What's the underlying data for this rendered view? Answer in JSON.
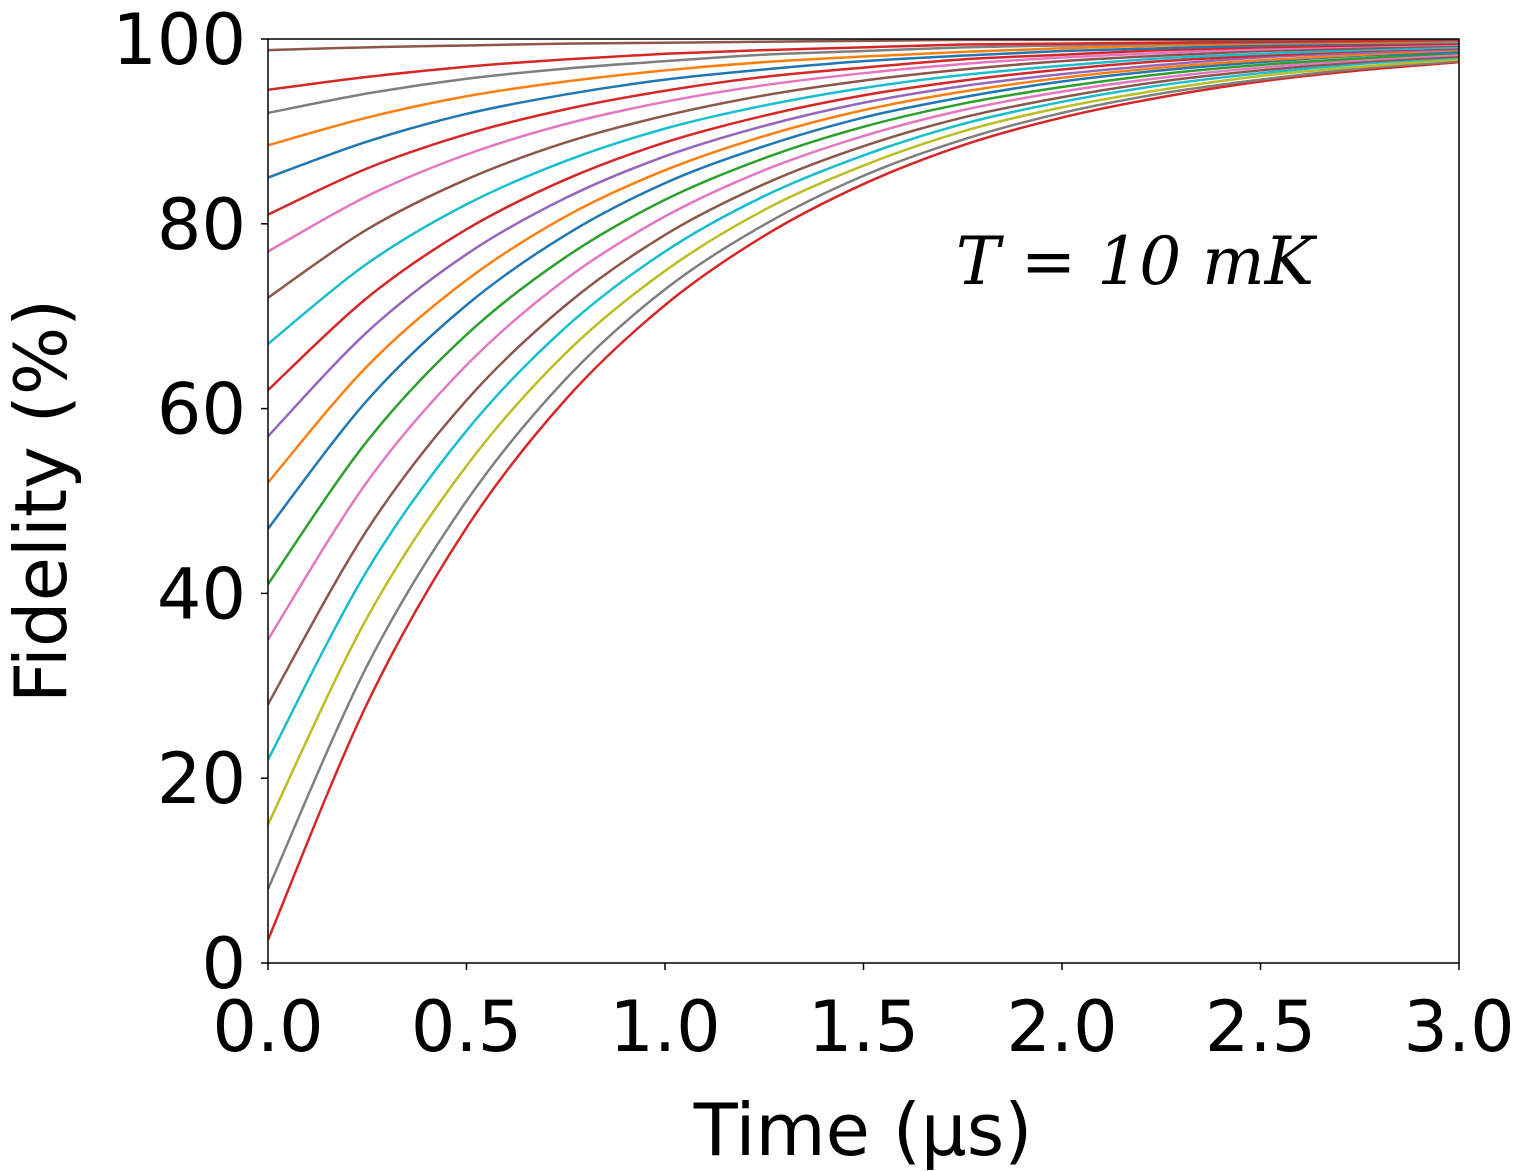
{
  "chart_data": {
    "type": "line",
    "xlabel": "Time (μs)",
    "ylabel": "Fidelity (%)",
    "annotation": "T = 10 mK",
    "x": [
      0,
      0.25,
      0.5,
      0.75,
      1,
      1.25,
      1.5,
      1.75,
      2,
      2.25,
      2.5,
      2.75,
      3
    ],
    "xlim": [
      0,
      3
    ],
    "ylim": [
      0,
      100
    ],
    "xticks": [
      {
        "value": 0,
        "label": "0.0"
      },
      {
        "value": 0.5,
        "label": "0.5"
      },
      {
        "value": 1,
        "label": "1.0"
      },
      {
        "value": 1.5,
        "label": "1.5"
      },
      {
        "value": 2,
        "label": "2.0"
      },
      {
        "value": 2.5,
        "label": "2.5"
      },
      {
        "value": 3,
        "label": "3.0"
      }
    ],
    "yticks": [
      0,
      20,
      40,
      60,
      80,
      100
    ],
    "grid": false,
    "series": [
      {
        "color": "#d62728",
        "values": [
          2.5,
          28.1,
          47.1,
          61.0,
          71.2,
          78.7,
          84.3,
          88.5,
          91.5,
          93.7,
          95.4,
          96.6,
          97.5
        ]
      },
      {
        "color": "#7f7f7f",
        "values": [
          8,
          32.2,
          50.0,
          63.2,
          72.9,
          79.9,
          85.2,
          89.1,
          92.0,
          94.1,
          95.6,
          96.8,
          97.6
        ]
      },
      {
        "color": "#bcbd22",
        "values": [
          15,
          37.4,
          53.8,
          66.0,
          74.9,
          81.5,
          86.3,
          90.0,
          92.6,
          94.5,
          96.0,
          97.0,
          97.8
        ]
      },
      {
        "color": "#17becf",
        "values": [
          22,
          42.5,
          57.6,
          68.8,
          77.0,
          83.0,
          87.4,
          90.8,
          93.2,
          95.0,
          96.3,
          97.3,
          98.0
        ]
      },
      {
        "color": "#8c564b",
        "values": [
          28,
          46.9,
          60.9,
          71.2,
          78.8,
          84.3,
          88.4,
          91.5,
          93.7,
          95.4,
          96.6,
          97.5,
          98.1
        ]
      },
      {
        "color": "#e377c2",
        "values": [
          35,
          52.1,
          64.7,
          74.0,
          80.8,
          85.8,
          89.5,
          92.3,
          94.3,
          95.8,
          96.9,
          97.7,
          98.3
        ]
      },
      {
        "color": "#2ca02c",
        "values": [
          41,
          56.5,
          68.0,
          76.4,
          82.6,
          87.1,
          90.5,
          93.0,
          94.8,
          96.2,
          97.2,
          97.9,
          98.5
        ]
      },
      {
        "color": "#1f77b4",
        "values": [
          47,
          60.9,
          71.2,
          78.8,
          84.4,
          88.4,
          91.5,
          93.7,
          95.4,
          96.6,
          97.5,
          98.2,
          98.6
        ]
      },
      {
        "color": "#ff7f0e",
        "values": [
          52,
          64.6,
          73.9,
          80.8,
          85.8,
          89.5,
          92.3,
          94.3,
          95.8,
          96.9,
          97.7,
          98.3,
          98.8
        ]
      },
      {
        "color": "#9467bd",
        "values": [
          57,
          68.3,
          76.7,
          82.8,
          87.3,
          90.6,
          93.1,
          94.9,
          96.2,
          97.2,
          98.0,
          98.5,
          98.9
        ]
      },
      {
        "color": "#d62728",
        "values": [
          62,
          72.0,
          79.4,
          84.8,
          88.8,
          91.7,
          93.9,
          95.5,
          96.7,
          97.6,
          98.2,
          98.7,
          99.0
        ]
      },
      {
        "color": "#17becf",
        "values": [
          67,
          75.7,
          82.1,
          86.8,
          90.3,
          92.8,
          94.7,
          96.1,
          97.1,
          97.9,
          98.4,
          98.8,
          99.1
        ]
      },
      {
        "color": "#8c564b",
        "values": [
          72,
          79.4,
          84.8,
          88.8,
          91.7,
          93.9,
          95.5,
          96.7,
          97.6,
          98.2,
          98.7,
          99.0,
          99.3
        ]
      },
      {
        "color": "#e377c2",
        "values": [
          77,
          83.0,
          87.5,
          90.8,
          93.2,
          95.0,
          96.3,
          97.3,
          98.0,
          98.5,
          98.9,
          99.2,
          99.4
        ]
      },
      {
        "color": "#d62728",
        "values": [
          81,
          86.0,
          89.7,
          92.4,
          94.4,
          95.9,
          96.9,
          97.8,
          98.3,
          98.8,
          99.1,
          99.3,
          99.5
        ]
      },
      {
        "color": "#1f77b4",
        "values": [
          85,
          88.9,
          91.9,
          94.0,
          95.6,
          96.7,
          97.6,
          98.2,
          98.7,
          99.0,
          99.3,
          99.5,
          99.6
        ]
      },
      {
        "color": "#ff7f0e",
        "values": [
          88.5,
          91.5,
          93.8,
          95.4,
          96.6,
          97.5,
          98.1,
          98.6,
          99.0,
          99.3,
          99.5,
          99.6,
          99.7
        ]
      },
      {
        "color": "#7f7f7f",
        "values": [
          92,
          94.1,
          95.7,
          96.8,
          97.6,
          98.3,
          98.7,
          99.1,
          99.3,
          99.5,
          99.6,
          99.7,
          99.8
        ]
      },
      {
        "color": "#d62728",
        "values": [
          94.5,
          95.9,
          97.0,
          97.8,
          98.4,
          98.8,
          99.1,
          99.4,
          99.5,
          99.6,
          99.7,
          99.8,
          99.9
        ]
      },
      {
        "color": "#8c564b",
        "values": [
          98.8,
          99.1,
          99.3,
          99.5,
          99.6,
          99.7,
          99.8,
          99.9,
          99.9,
          99.9,
          99.9,
          100,
          100
        ]
      }
    ]
  }
}
